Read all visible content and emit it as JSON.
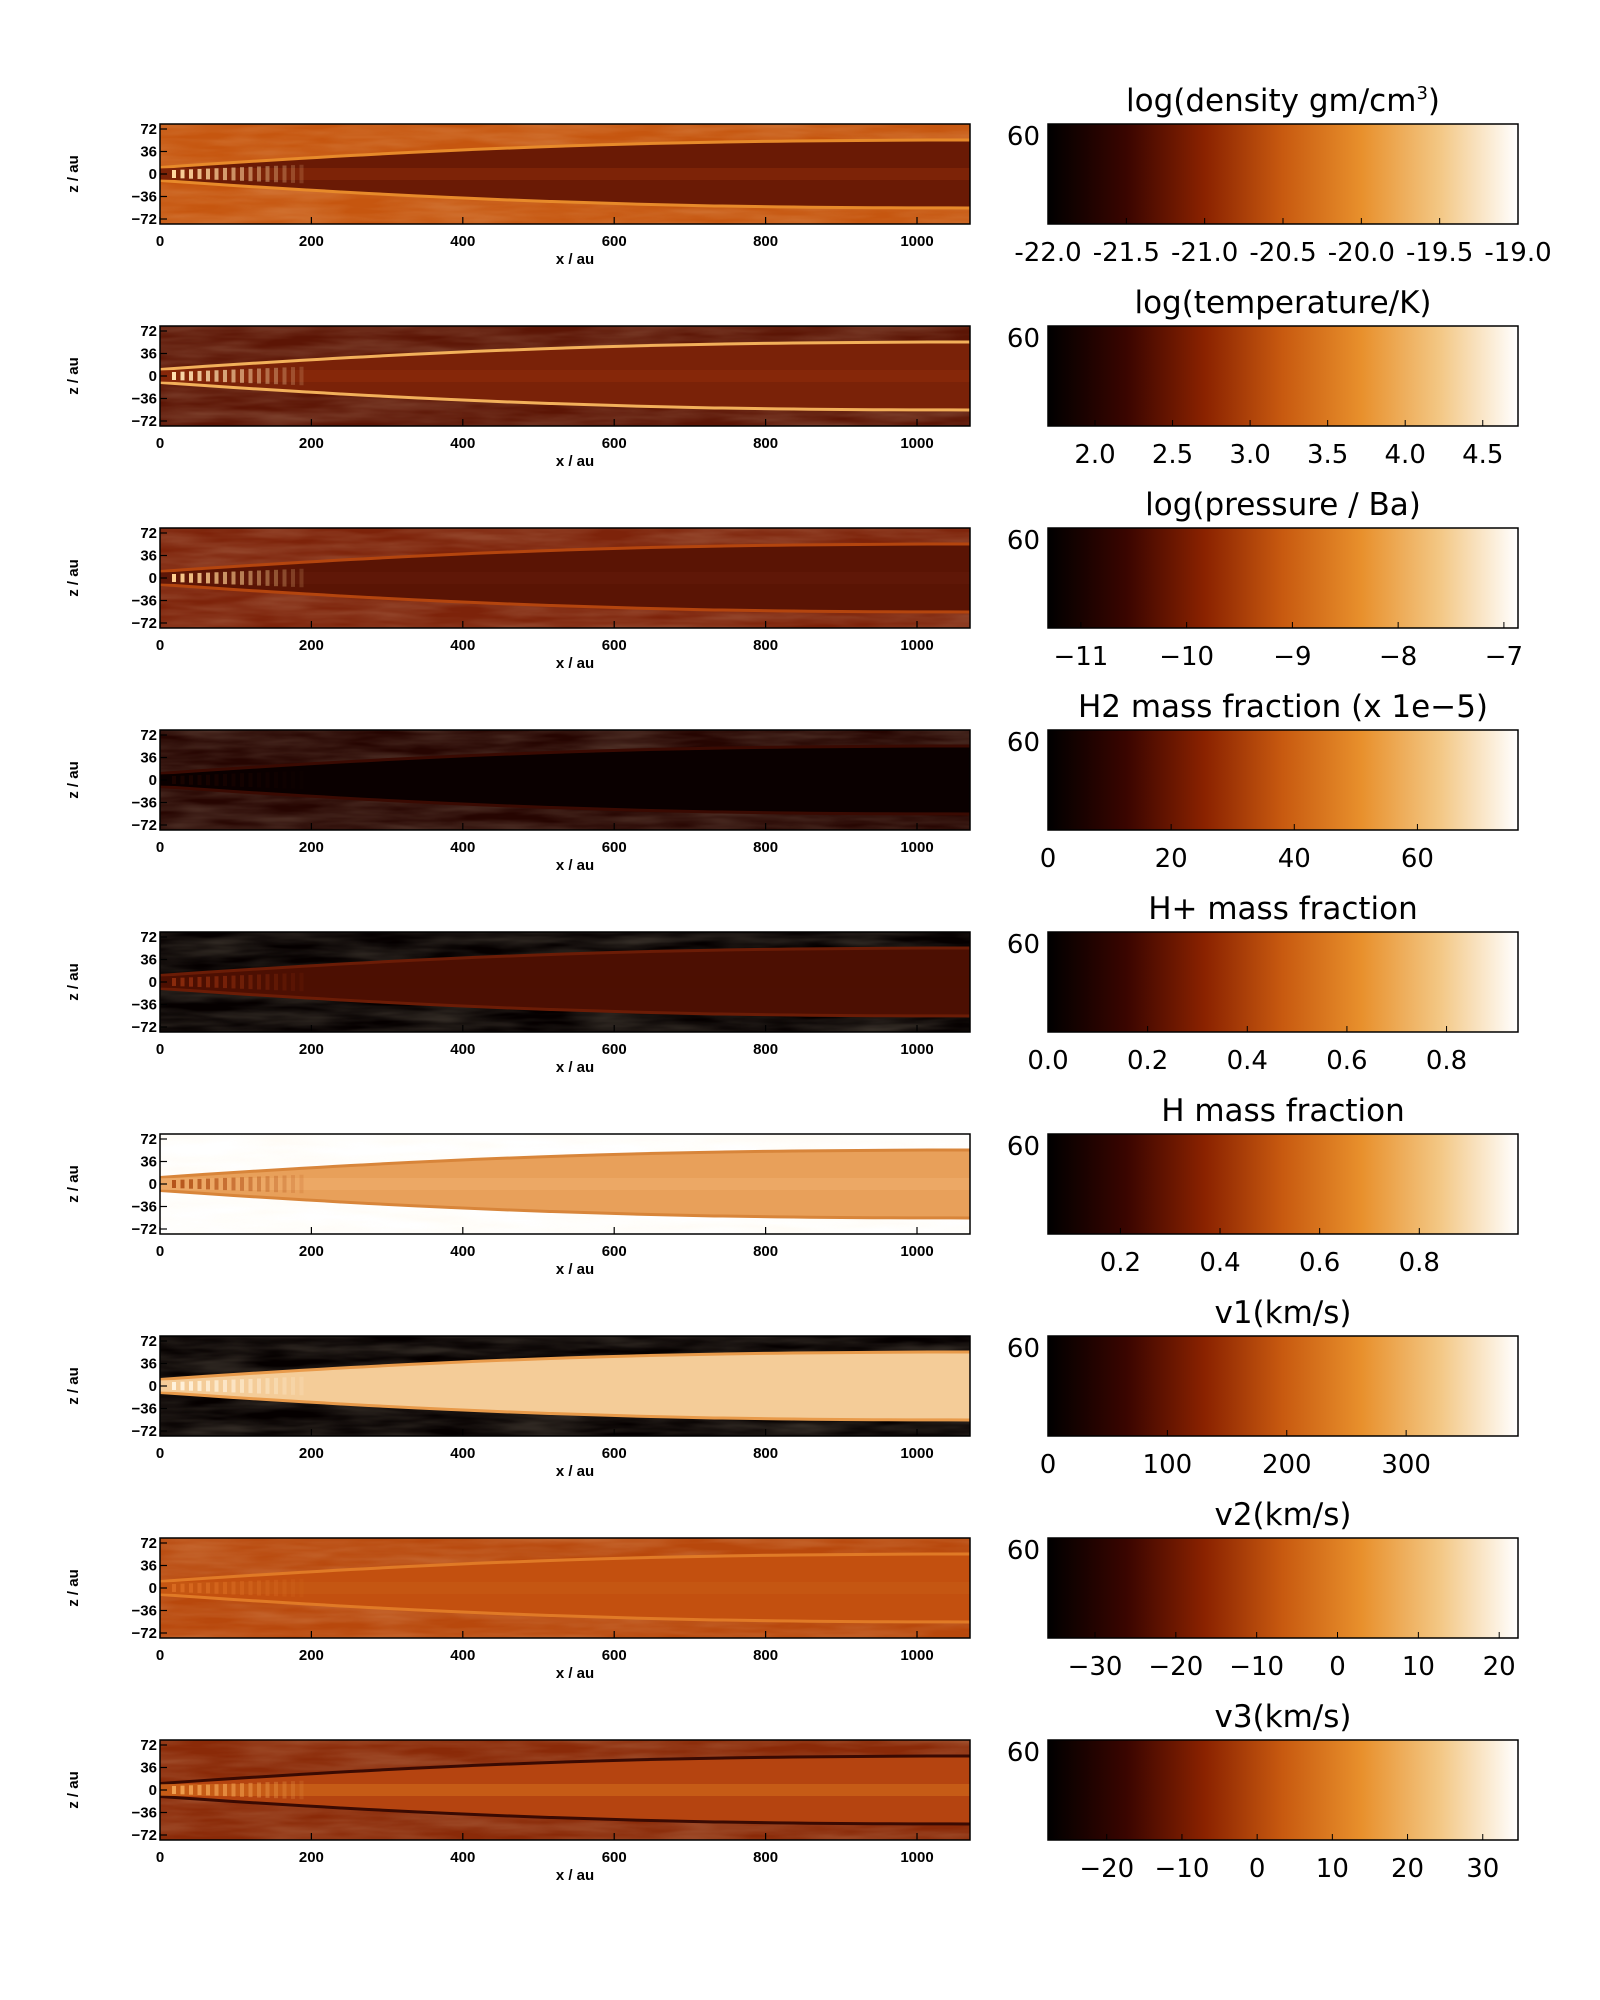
{
  "figure": {
    "map_xlabel": "x / au",
    "map_ylabel": "z / au",
    "x_ticks": [
      "0",
      "200",
      "400",
      "600",
      "800",
      "1000"
    ],
    "x_tick_values": [
      0,
      200,
      400,
      600,
      800,
      1000
    ],
    "x_range": [
      0,
      1070
    ],
    "z_ticks": [
      "72",
      "36",
      "0",
      "−36",
      "−72"
    ],
    "z_tick_values": [
      72,
      36,
      0,
      -36,
      -72
    ],
    "z_range": [
      -80,
      80
    ],
    "colorbar_side_label": "60",
    "colormap_stops": [
      "#000000",
      "#3a0500",
      "#8a2200",
      "#c85a10",
      "#e8902c",
      "#f3c784",
      "#ffffff"
    ]
  },
  "panels": [
    {
      "id": "density",
      "title": "log(density gm/cm",
      "title_sup": "3",
      "title_end": ")",
      "cb_ticks": [
        "-22.0",
        "-21.5",
        "-21.0",
        "-20.5",
        "-20.0",
        "-19.5",
        "-19.0"
      ],
      "cb_tick_positions": [
        0.0,
        0.1667,
        0.3333,
        0.5,
        0.6667,
        0.8333,
        1.0
      ],
      "map_style": {
        "body": "#6a1a05",
        "ambient": "#c6560f",
        "core": "#8a2a08",
        "edge": "#e78a2a",
        "knots": "#ffd8a0"
      }
    },
    {
      "id": "temperature",
      "title": "log(temperature/K)",
      "cb_ticks": [
        "2.0",
        "2.5",
        "3.0",
        "3.5",
        "4.0",
        "4.5"
      ],
      "cb_tick_positions": [
        0.1,
        0.265,
        0.43,
        0.595,
        0.76,
        0.925
      ],
      "map_style": {
        "body": "#7a2208",
        "ambient": "#5c1505",
        "core": "#8e2c0a",
        "edge": "#f2b05a",
        "knots": "#ffe0b0"
      }
    },
    {
      "id": "pressure",
      "title": "log(pressure / Ba)",
      "cb_ticks": [
        "−11",
        "−10",
        "−9",
        "−8",
        "−7"
      ],
      "cb_tick_positions": [
        0.07,
        0.295,
        0.52,
        0.745,
        0.97
      ],
      "map_style": {
        "body": "#5a1404",
        "ambient": "#7d230a",
        "core": "#62190a",
        "edge": "#b4450e",
        "knots": "#ffd090"
      }
    },
    {
      "id": "h2",
      "title": "H2 mass fraction (x 1e−5)",
      "cb_ticks": [
        "0",
        "20",
        "40",
        "60"
      ],
      "cb_tick_positions": [
        0.0,
        0.262,
        0.524,
        0.786
      ],
      "map_style": {
        "body": "#0a0000",
        "ambient": "#260501",
        "core": "#0a0000",
        "edge": "#3a0a02",
        "knots": "#1a0300"
      }
    },
    {
      "id": "hplus",
      "title": "H+ mass fraction",
      "cb_ticks": [
        "0.0",
        "0.2",
        "0.4",
        "0.6",
        "0.8"
      ],
      "cb_tick_positions": [
        0.0,
        0.212,
        0.424,
        0.636,
        0.848
      ],
      "map_style": {
        "body": "#4c0f02",
        "ambient": "#050000",
        "core": "#4c0f02",
        "edge": "#6b1c06",
        "knots": "#8a2a0c"
      }
    },
    {
      "id": "h",
      "title": "H mass fraction",
      "cb_ticks": [
        "0.2",
        "0.4",
        "0.6",
        "0.8"
      ],
      "cb_tick_positions": [
        0.154,
        0.366,
        0.578,
        0.79
      ],
      "map_style": {
        "body": "#e8a05a",
        "ambient": "#ffffff",
        "core": "#eeae6c",
        "edge": "#d8853a",
        "knots": "#b5541a"
      }
    },
    {
      "id": "v1",
      "title": "v1(km/s)",
      "cb_ticks": [
        "0",
        "100",
        "200",
        "300"
      ],
      "cb_tick_positions": [
        0.0,
        0.254,
        0.508,
        0.762
      ],
      "map_style": {
        "body": "#f4cc98",
        "ambient": "#050000",
        "core": "#f4cc98",
        "edge": "#e89a4a",
        "knots": "#fff2dc"
      }
    },
    {
      "id": "v2",
      "title": "v2(km/s)",
      "cb_ticks": [
        "−30",
        "−20",
        "−10",
        "0",
        "10",
        "20"
      ],
      "cb_tick_positions": [
        0.1,
        0.272,
        0.444,
        0.616,
        0.788,
        0.96
      ],
      "map_style": {
        "body": "#c3500f",
        "ambient": "#b8480c",
        "core": "#c75a14",
        "edge": "#e07a26",
        "knots": "#d86a20"
      }
    },
    {
      "id": "v3",
      "title": "v3(km/s)",
      "cb_ticks": [
        "−20",
        "−10",
        "0",
        "10",
        "20",
        "30"
      ],
      "cb_tick_positions": [
        0.125,
        0.285,
        0.445,
        0.605,
        0.765,
        0.925
      ],
      "map_style": {
        "body": "#b54410",
        "ambient": "#8a2a08",
        "core": "#d26a1a",
        "edge": "#3a0a02",
        "knots": "#f0a050"
      }
    }
  ]
}
